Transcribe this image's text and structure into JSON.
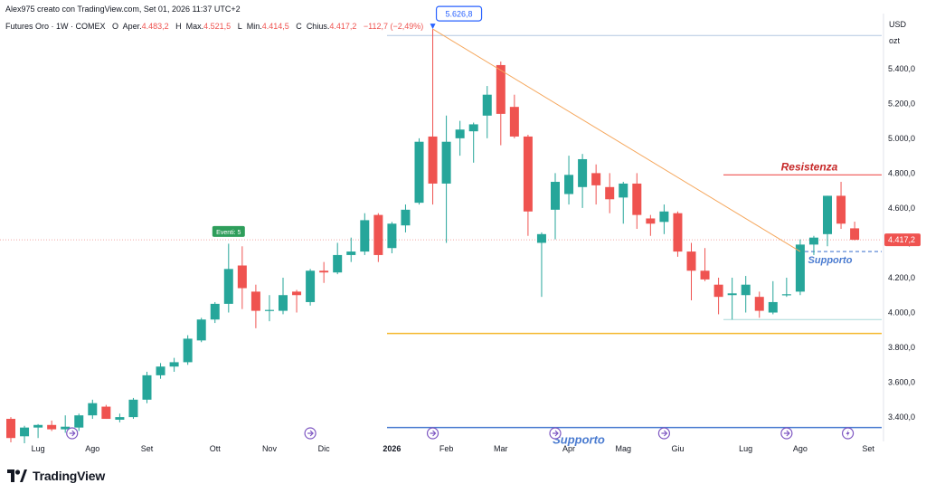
{
  "header": {
    "author_line": "Alex975 creato con TradingView.com, Set 01, 2026 11:37 UTC+2",
    "symbol": "Futures Oro · 1W · COMEX",
    "open_label": "O",
    "open_key": "Aper.",
    "open_value": "4.483,2",
    "high_label": "H",
    "high_key": "Max.",
    "high_value": "4.521,5",
    "low_label": "L",
    "low_key": "Min.",
    "low_value": "4.414,5",
    "close_label": "C",
    "close_key": "Chius.",
    "close_value": "4.417,2",
    "change_value": "−112,7 (−2,49%)"
  },
  "axis": {
    "currency": "USD",
    "unit": "ozt"
  },
  "footer": {
    "brand": "TradingView"
  },
  "colors": {
    "up": "#26a69a",
    "down": "#ef5350",
    "trendline": "#f5a65b",
    "resistance": "#ef5350",
    "support": "#4a7bd0",
    "level": "#f5b82e"
  },
  "chart_data": {
    "type": "candlestick",
    "title": "Futures Oro · 1W · COMEX",
    "ylim": [
      3250,
      5700
    ],
    "yticks": [
      3400,
      3600,
      3800,
      4000,
      4200,
      4400,
      4600,
      4800,
      5000,
      5200,
      5400
    ],
    "ytick_labels": [
      "3.400,0",
      "3.600,0",
      "3.800,0",
      "4.000,0",
      "4.200,0",
      "4.400,0",
      "4.600,0",
      "4.800,0",
      "5.000,0",
      "5.200,0",
      "5.400,0"
    ],
    "xticks": [
      {
        "label": "Lug",
        "index": 2
      },
      {
        "label": "Ago",
        "index": 6
      },
      {
        "label": "Set",
        "index": 10
      },
      {
        "label": "Ott",
        "index": 15
      },
      {
        "label": "Nov",
        "index": 19
      },
      {
        "label": "Dic",
        "index": 23
      },
      {
        "label": "2026",
        "index": 28,
        "bold": true
      },
      {
        "label": "Feb",
        "index": 32
      },
      {
        "label": "Mar",
        "index": 36
      },
      {
        "label": "Apr",
        "index": 41
      },
      {
        "label": "Mag",
        "index": 45
      },
      {
        "label": "Giu",
        "index": 49
      },
      {
        "label": "Lug",
        "index": 54
      },
      {
        "label": "Ago",
        "index": 58
      },
      {
        "label": "Set",
        "index": 63
      }
    ],
    "candles": [
      {
        "o": 3390,
        "h": 3400,
        "l": 3255,
        "c": 3280
      },
      {
        "o": 3290,
        "h": 3350,
        "l": 3250,
        "c": 3340
      },
      {
        "o": 3340,
        "h": 3360,
        "l": 3280,
        "c": 3355
      },
      {
        "o": 3355,
        "h": 3380,
        "l": 3320,
        "c": 3330
      },
      {
        "o": 3330,
        "h": 3410,
        "l": 3310,
        "c": 3345
      },
      {
        "o": 3340,
        "h": 3420,
        "l": 3320,
        "c": 3410
      },
      {
        "o": 3410,
        "h": 3500,
        "l": 3390,
        "c": 3480
      },
      {
        "o": 3460,
        "h": 3470,
        "l": 3390,
        "c": 3390
      },
      {
        "o": 3385,
        "h": 3420,
        "l": 3370,
        "c": 3400
      },
      {
        "o": 3400,
        "h": 3510,
        "l": 3390,
        "c": 3500
      },
      {
        "o": 3500,
        "h": 3660,
        "l": 3480,
        "c": 3640
      },
      {
        "o": 3640,
        "h": 3710,
        "l": 3620,
        "c": 3690
      },
      {
        "o": 3690,
        "h": 3740,
        "l": 3660,
        "c": 3715
      },
      {
        "o": 3715,
        "h": 3870,
        "l": 3700,
        "c": 3850
      },
      {
        "o": 3840,
        "h": 3970,
        "l": 3830,
        "c": 3960
      },
      {
        "o": 3960,
        "h": 4060,
        "l": 3940,
        "c": 4050
      },
      {
        "o": 4050,
        "h": 4395,
        "l": 4000,
        "c": 4250
      },
      {
        "o": 4270,
        "h": 4380,
        "l": 4020,
        "c": 4140
      },
      {
        "o": 4120,
        "h": 4160,
        "l": 3910,
        "c": 4010
      },
      {
        "o": 4010,
        "h": 4100,
        "l": 3950,
        "c": 4015
      },
      {
        "o": 4010,
        "h": 4200,
        "l": 3990,
        "c": 4100
      },
      {
        "o": 4120,
        "h": 4130,
        "l": 4000,
        "c": 4100
      },
      {
        "o": 4060,
        "h": 4250,
        "l": 4040,
        "c": 4240
      },
      {
        "o": 4240,
        "h": 4290,
        "l": 4170,
        "c": 4230
      },
      {
        "o": 4230,
        "h": 4400,
        "l": 4220,
        "c": 4330
      },
      {
        "o": 4330,
        "h": 4430,
        "l": 4290,
        "c": 4350
      },
      {
        "o": 4350,
        "h": 4570,
        "l": 4330,
        "c": 4530
      },
      {
        "o": 4560,
        "h": 4570,
        "l": 4290,
        "c": 4330
      },
      {
        "o": 4370,
        "h": 4520,
        "l": 4340,
        "c": 4510
      },
      {
        "o": 4500,
        "h": 4620,
        "l": 4460,
        "c": 4590
      },
      {
        "o": 4630,
        "h": 5000,
        "l": 4620,
        "c": 4980
      },
      {
        "o": 5010,
        "h": 5626.8,
        "l": 4620,
        "c": 4740
      },
      {
        "o": 4740,
        "h": 5130,
        "l": 4400,
        "c": 4980
      },
      {
        "o": 5000,
        "h": 5100,
        "l": 4900,
        "c": 5050
      },
      {
        "o": 5040,
        "h": 5090,
        "l": 4860,
        "c": 5080
      },
      {
        "o": 5130,
        "h": 5300,
        "l": 5000,
        "c": 5250
      },
      {
        "o": 5420,
        "h": 5440,
        "l": 4960,
        "c": 5140
      },
      {
        "o": 5180,
        "h": 5250,
        "l": 5000,
        "c": 5010
      },
      {
        "o": 5010,
        "h": 5020,
        "l": 4440,
        "c": 4580
      },
      {
        "o": 4400,
        "h": 4460,
        "l": 4090,
        "c": 4450
      },
      {
        "o": 4590,
        "h": 4800,
        "l": 4420,
        "c": 4750
      },
      {
        "o": 4680,
        "h": 4900,
        "l": 4620,
        "c": 4790
      },
      {
        "o": 4720,
        "h": 4910,
        "l": 4600,
        "c": 4880
      },
      {
        "o": 4800,
        "h": 4850,
        "l": 4620,
        "c": 4730
      },
      {
        "o": 4720,
        "h": 4800,
        "l": 4570,
        "c": 4650
      },
      {
        "o": 4660,
        "h": 4750,
        "l": 4510,
        "c": 4740
      },
      {
        "o": 4740,
        "h": 4800,
        "l": 4480,
        "c": 4560
      },
      {
        "o": 4540,
        "h": 4560,
        "l": 4440,
        "c": 4510
      },
      {
        "o": 4520,
        "h": 4620,
        "l": 4450,
        "c": 4580
      },
      {
        "o": 4570,
        "h": 4580,
        "l": 4320,
        "c": 4350
      },
      {
        "o": 4350,
        "h": 4400,
        "l": 4070,
        "c": 4240
      },
      {
        "o": 4240,
        "h": 4370,
        "l": 4180,
        "c": 4190
      },
      {
        "o": 4160,
        "h": 4200,
        "l": 3990,
        "c": 4090
      },
      {
        "o": 4100,
        "h": 4200,
        "l": 3960,
        "c": 4110
      },
      {
        "o": 4100,
        "h": 4210,
        "l": 4000,
        "c": 4160
      },
      {
        "o": 4090,
        "h": 4120,
        "l": 3970,
        "c": 4010
      },
      {
        "o": 4000,
        "h": 4180,
        "l": 3990,
        "c": 4060
      },
      {
        "o": 4100,
        "h": 4200,
        "l": 4090,
        "c": 4105
      },
      {
        "o": 4120,
        "h": 4420,
        "l": 4100,
        "c": 4390
      },
      {
        "o": 4390,
        "h": 4440,
        "l": 4330,
        "c": 4430
      },
      {
        "o": 4450,
        "h": 4670,
        "l": 4380,
        "c": 4670
      },
      {
        "o": 4670,
        "h": 4750,
        "l": 4480,
        "c": 4510
      },
      {
        "o": 4483.2,
        "h": 4521.5,
        "l": 4414.5,
        "c": 4417.2
      }
    ],
    "annotations": {
      "peak_label": "5.626,8",
      "peak_value": 5626.8,
      "last_price_label": "4.417,2",
      "last_price": 4417.2,
      "event_label": "Eventi: 5",
      "resistance_label": "Resistenza",
      "resistance_value": 4790,
      "support_label": "Supporto",
      "support_value": 4350,
      "support_bottom_label": "Supporto",
      "support_bottom_value": 3340,
      "level_value": 3880,
      "top_level_value": 5590,
      "low_level_value": 3960
    }
  }
}
